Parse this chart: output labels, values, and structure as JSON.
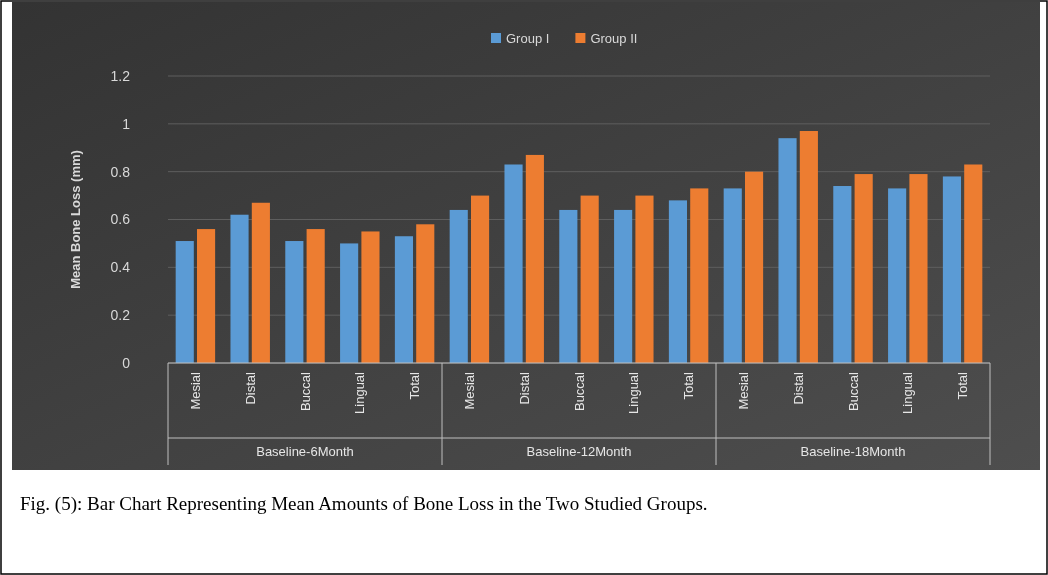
{
  "chart_data": {
    "type": "bar",
    "title": "Fig. (5): Bar Chart Representing Mean Amounts of Bone Loss in the Two Studied Groups.",
    "ylabel": "Mean Bone Loss (mm)",
    "categories": [
      "Mesial",
      "Distal",
      "Buccal",
      "Lingual",
      "Total",
      "Mesial",
      "Distal",
      "Buccal",
      "Lingual",
      "Total",
      "Mesial",
      "Distal",
      "Buccal",
      "Lingual",
      "Total"
    ],
    "annotations": [
      "Baseline-6Month",
      "Baseline-12Month",
      "Baseline-18Month"
    ],
    "series": [
      {
        "name": "Group I",
        "color": "#5b9bd5",
        "values": [
          0.51,
          0.62,
          0.51,
          0.5,
          0.53,
          0.64,
          0.83,
          0.64,
          0.64,
          0.68,
          0.73,
          0.94,
          0.74,
          0.73,
          0.78
        ]
      },
      {
        "name": "Group II",
        "color": "#ed7d31",
        "values": [
          0.56,
          0.67,
          0.56,
          0.55,
          0.58,
          0.7,
          0.87,
          0.7,
          0.7,
          0.73,
          0.8,
          0.97,
          0.79,
          0.79,
          0.83
        ]
      }
    ],
    "ylim": [
      0,
      1.2
    ],
    "yticks": [
      0,
      0.2,
      0.4,
      0.6,
      0.8,
      1,
      1.2
    ],
    "grid": "y",
    "legend": "top"
  }
}
